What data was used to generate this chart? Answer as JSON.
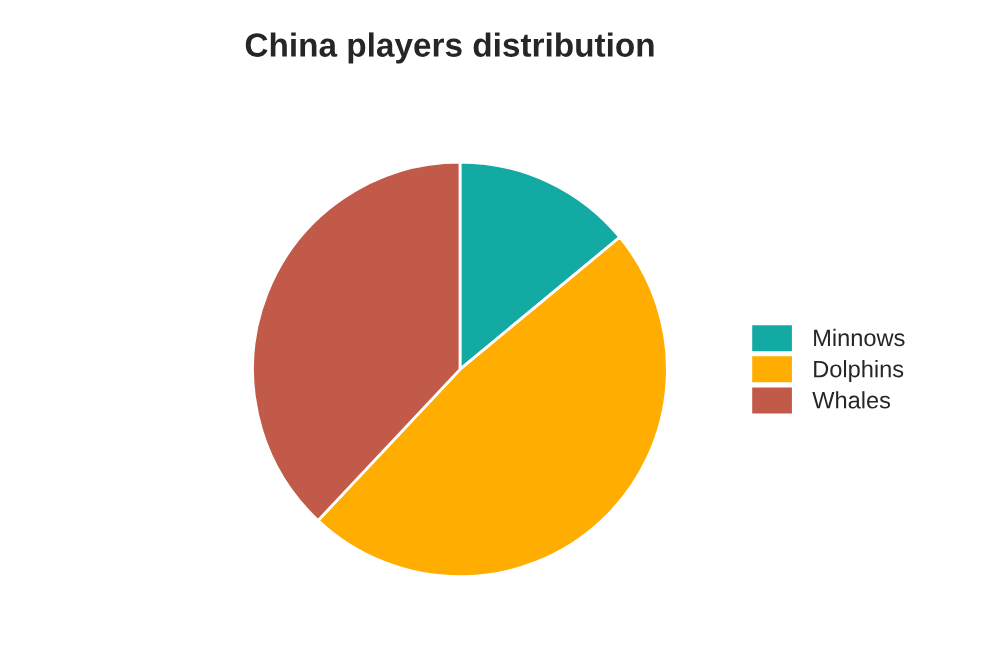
{
  "chart_data": {
    "type": "pie",
    "title": "China players distribution",
    "categories": [
      "Minnows",
      "Dolphins",
      "Whales"
    ],
    "values": [
      14,
      48,
      38
    ],
    "colors": [
      "#13aaa3",
      "#ffad00",
      "#c25a49"
    ],
    "legend": "right"
  }
}
